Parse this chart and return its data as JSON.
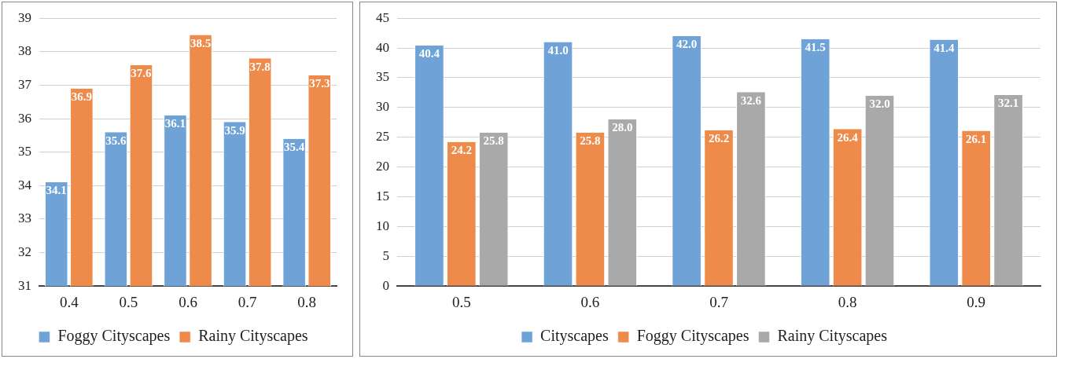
{
  "chart_data": [
    {
      "type": "bar",
      "categories": [
        "0.4",
        "0.5",
        "0.6",
        "0.7",
        "0.8"
      ],
      "series": [
        {
          "name": "Foggy Cityscapes",
          "color": "#6fa3d8",
          "values": [
            34.1,
            35.6,
            36.1,
            35.9,
            35.4
          ]
        },
        {
          "name": "Rainy Cityscapes",
          "color": "#ee8a4a",
          "values": [
            36.9,
            37.6,
            38.5,
            37.8,
            37.3
          ]
        }
      ],
      "ylim": [
        31,
        39
      ],
      "yticks": [
        31,
        32,
        33,
        34,
        35,
        36,
        37,
        38,
        39
      ],
      "grid": "y",
      "legend": "bottom",
      "data_labels": true
    },
    {
      "type": "bar",
      "categories": [
        "0.5",
        "0.6",
        "0.7",
        "0.8",
        "0.9"
      ],
      "series": [
        {
          "name": "Cityscapes",
          "color": "#6fa3d8",
          "values": [
            40.4,
            41.0,
            42.0,
            41.5,
            41.4
          ],
          "value_labels": [
            "40.4",
            "41.0",
            "42.0",
            "41.5",
            "41.4"
          ]
        },
        {
          "name": "Foggy Cityscapes",
          "color": "#ee8a4a",
          "values": [
            24.2,
            25.8,
            26.2,
            26.4,
            26.1
          ],
          "value_labels": [
            "24.2",
            "25.8",
            "26.2",
            "26.4",
            "26.1"
          ]
        },
        {
          "name": "Rainy Cityscapes",
          "color": "#a9a9a9",
          "values": [
            25.8,
            28.0,
            32.6,
            32.0,
            32.1
          ],
          "value_labels": [
            "25.8",
            "28.0",
            "32.6",
            "32.0",
            "32.1"
          ]
        }
      ],
      "ylim": [
        0,
        45
      ],
      "yticks": [
        0,
        5,
        10,
        15,
        20,
        25,
        30,
        35,
        40,
        45
      ],
      "grid": "y",
      "legend": "bottom",
      "data_labels": true
    }
  ]
}
